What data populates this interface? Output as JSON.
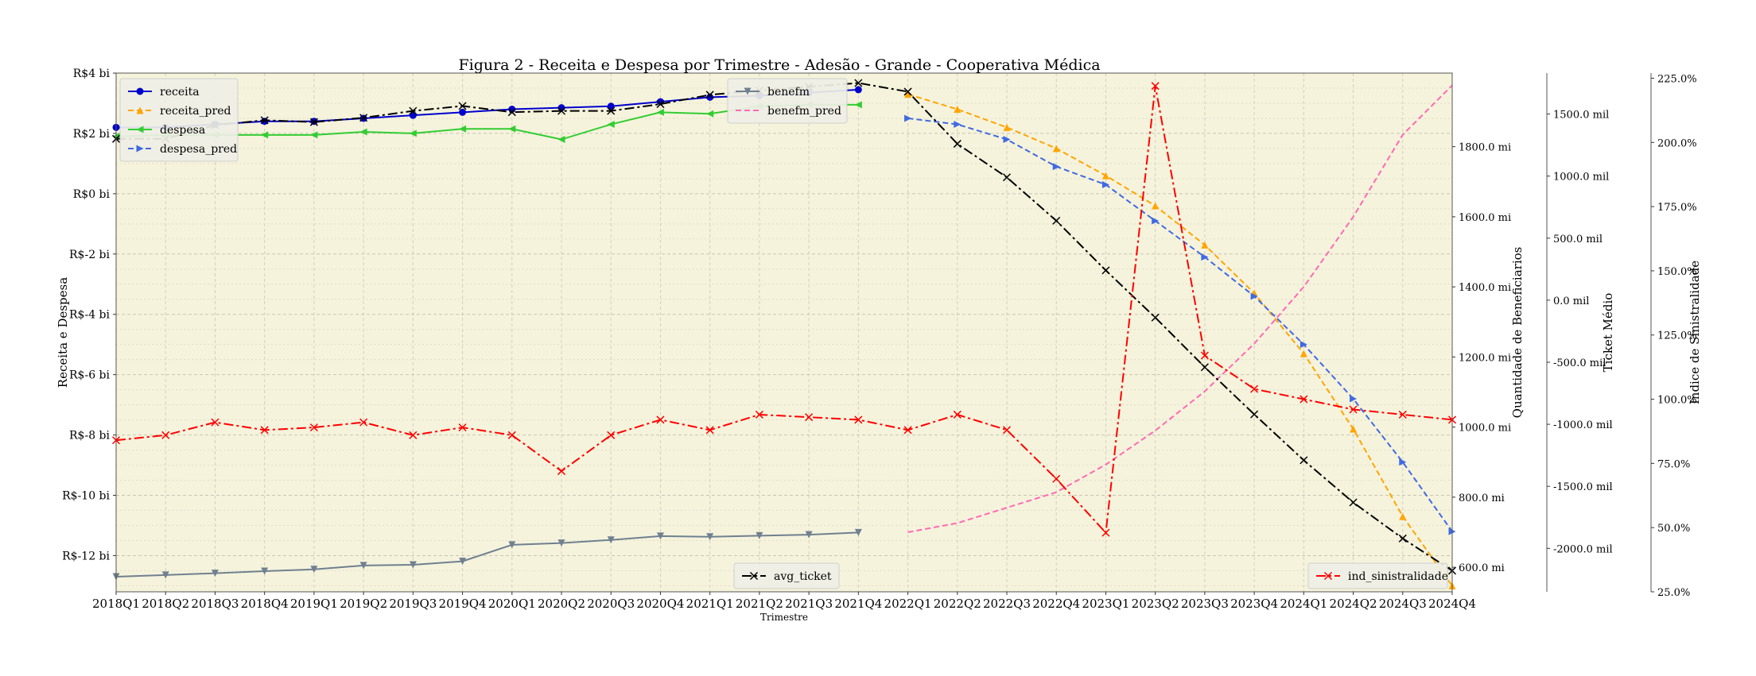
{
  "chart_data": {
    "type": "line",
    "title": "Figura 2 - Receita e Despesa por Trimestre - Adesão - Grande - Cooperativa Médica",
    "xlabel": "Trimestre",
    "categories": [
      "2018Q1",
      "2018Q2",
      "2018Q3",
      "2018Q4",
      "2019Q1",
      "2019Q2",
      "2019Q3",
      "2019Q4",
      "2020Q1",
      "2020Q2",
      "2020Q3",
      "2020Q4",
      "2021Q1",
      "2021Q2",
      "2021Q3",
      "2021Q4",
      "2022Q1",
      "2022Q2",
      "2022Q3",
      "2022Q4",
      "2023Q1",
      "2023Q2",
      "2023Q3",
      "2023Q4",
      "2024Q1",
      "2024Q2",
      "2024Q3",
      "2024Q4"
    ],
    "axes": [
      {
        "id": "money",
        "label": "Receita e Despesa",
        "ylim": [
          -13.2,
          4.0
        ],
        "ticks": [
          4,
          2,
          0,
          -2,
          -4,
          -6,
          -8,
          -10,
          -12
        ],
        "tick_labels": [
          "R$4 bi",
          "R$2 bi",
          "R$0 bi",
          "R$-2 bi",
          "R$-4 bi",
          "R$-6 bi",
          "R$-8 bi",
          "R$-10 bi",
          "R$-12 bi"
        ]
      },
      {
        "id": "benef",
        "label": "Quantidade de Beneficiarios",
        "ylim": [
          530,
          2010
        ],
        "ticks": [
          1800,
          1600,
          1400,
          1200,
          1000,
          800,
          600
        ],
        "tick_labels": [
          "1800.0 mi",
          "1600.0 mi",
          "1400.0 mi",
          "1200.0 mi",
          "1000.0 mi",
          "800.0 mi",
          "600.0 mi"
        ]
      },
      {
        "id": "ticket",
        "label": "Ticket Médio",
        "ylim": [
          -2350,
          1830
        ],
        "ticks": [
          1500,
          1000,
          500,
          0,
          -500,
          -1000,
          -1500,
          -2000
        ],
        "tick_labels": [
          "1500.0 mil",
          "1000.0 mil",
          "500.0 mil",
          "0.0 mil",
          "-500.0 mil",
          "-1000.0 mil",
          "-1500.0 mil",
          "-2000.0 mil"
        ]
      },
      {
        "id": "sin",
        "label": "Indice de Sinistralidade",
        "ylim": [
          25,
          227
        ],
        "ticks": [
          225,
          200,
          175,
          150,
          125,
          100,
          75,
          50,
          25
        ],
        "tick_labels": [
          "225.0%",
          "200.0%",
          "175.0%",
          "150.0%",
          "125.0%",
          "100.0%",
          "75.0%",
          "50.0%",
          "25.0%"
        ]
      }
    ],
    "series": [
      {
        "name": "receita",
        "axis": "money",
        "color": "#0000cd",
        "dash": "",
        "marker": "circle",
        "values": [
          2.2,
          2.2,
          2.3,
          2.4,
          2.4,
          2.5,
          2.6,
          2.7,
          2.8,
          2.85,
          2.9,
          3.05,
          3.2,
          3.25,
          3.35,
          3.45,
          null,
          null,
          null,
          null,
          null,
          null,
          null,
          null,
          null,
          null,
          null,
          null
        ]
      },
      {
        "name": "receita_pred",
        "axis": "money",
        "color": "#ffa500",
        "dash": "7,4",
        "marker": "triangle-up",
        "values": [
          null,
          null,
          null,
          null,
          null,
          null,
          null,
          null,
          null,
          null,
          null,
          null,
          null,
          null,
          null,
          null,
          3.3,
          2.8,
          2.2,
          1.5,
          0.6,
          -0.4,
          -1.7,
          -3.3,
          -5.3,
          -7.8,
          -10.7,
          -13.0
        ]
      },
      {
        "name": "despesa",
        "axis": "money",
        "color": "#32cd32",
        "dash": "",
        "marker": "triangle-left",
        "values": [
          1.9,
          1.95,
          1.95,
          1.95,
          1.95,
          2.05,
          2.0,
          2.15,
          2.15,
          1.8,
          2.3,
          2.7,
          2.65,
          2.9,
          2.95,
          2.95,
          null,
          null,
          null,
          null,
          null,
          null,
          null,
          null,
          null,
          null,
          null,
          null
        ]
      },
      {
        "name": "despesa_pred",
        "axis": "money",
        "color": "#4169e1",
        "dash": "7,4",
        "marker": "triangle-right",
        "values": [
          null,
          null,
          null,
          null,
          null,
          null,
          null,
          null,
          null,
          null,
          null,
          null,
          null,
          null,
          null,
          null,
          2.5,
          2.3,
          1.8,
          0.9,
          0.3,
          -0.9,
          -2.1,
          -3.4,
          -5.0,
          -6.8,
          -8.9,
          -11.2
        ]
      },
      {
        "name": "benefm",
        "axis": "benef",
        "color": "#708090",
        "dash": "",
        "marker": "triangle-down",
        "values": [
          573,
          578,
          583,
          589,
          594,
          605,
          607,
          617,
          664,
          669,
          678,
          689,
          687,
          690,
          693,
          699,
          null,
          null,
          null,
          null,
          null,
          null,
          null,
          null,
          null,
          null,
          null,
          null
        ]
      },
      {
        "name": "benefm_pred",
        "axis": "benef",
        "color": "#ff69b4",
        "dash": "7,4",
        "marker": "none",
        "values": [
          null,
          null,
          null,
          null,
          null,
          null,
          null,
          null,
          null,
          null,
          null,
          null,
          null,
          null,
          null,
          null,
          700,
          726,
          770,
          814,
          893,
          990,
          1102,
          1238,
          1400,
          1600,
          1834,
          1975
        ]
      },
      {
        "name": "avg_ticket",
        "axis": "ticket",
        "color": "#000000",
        "dash": "12,4,3,4",
        "marker": "x",
        "values": [
          1300,
          1300,
          1410,
          1450,
          1435,
          1470,
          1525,
          1565,
          1515,
          1525,
          1525,
          1580,
          1655,
          1690,
          1720,
          1750,
          1680,
          1260,
          990,
          640,
          240,
          -140,
          -540,
          -920,
          -1290,
          -1630,
          -1920,
          -2180
        ]
      },
      {
        "name": "ind_sinistralidade",
        "axis": "sin",
        "color": "#ff0000",
        "dash": "12,4,3,4",
        "marker": "x",
        "values": [
          84,
          86,
          91,
          88,
          89,
          91,
          86,
          89,
          86,
          72,
          86,
          92,
          88,
          94,
          93,
          92,
          88,
          94,
          88,
          69,
          48,
          222,
          117,
          104,
          100,
          96,
          94,
          92
        ]
      }
    ],
    "legends": [
      {
        "position": "top-left",
        "entries": [
          "receita",
          "receita_pred",
          "despesa",
          "despesa_pred"
        ]
      },
      {
        "position": "top-center",
        "entries": [
          "benefm",
          "benefm_pred"
        ]
      },
      {
        "position": "bottom-center",
        "entries": [
          "avg_ticket"
        ]
      },
      {
        "position": "bottom-right",
        "entries": [
          "ind_sinistralidade"
        ]
      }
    ],
    "plot_background": "#f5f3dc",
    "grid": true
  }
}
